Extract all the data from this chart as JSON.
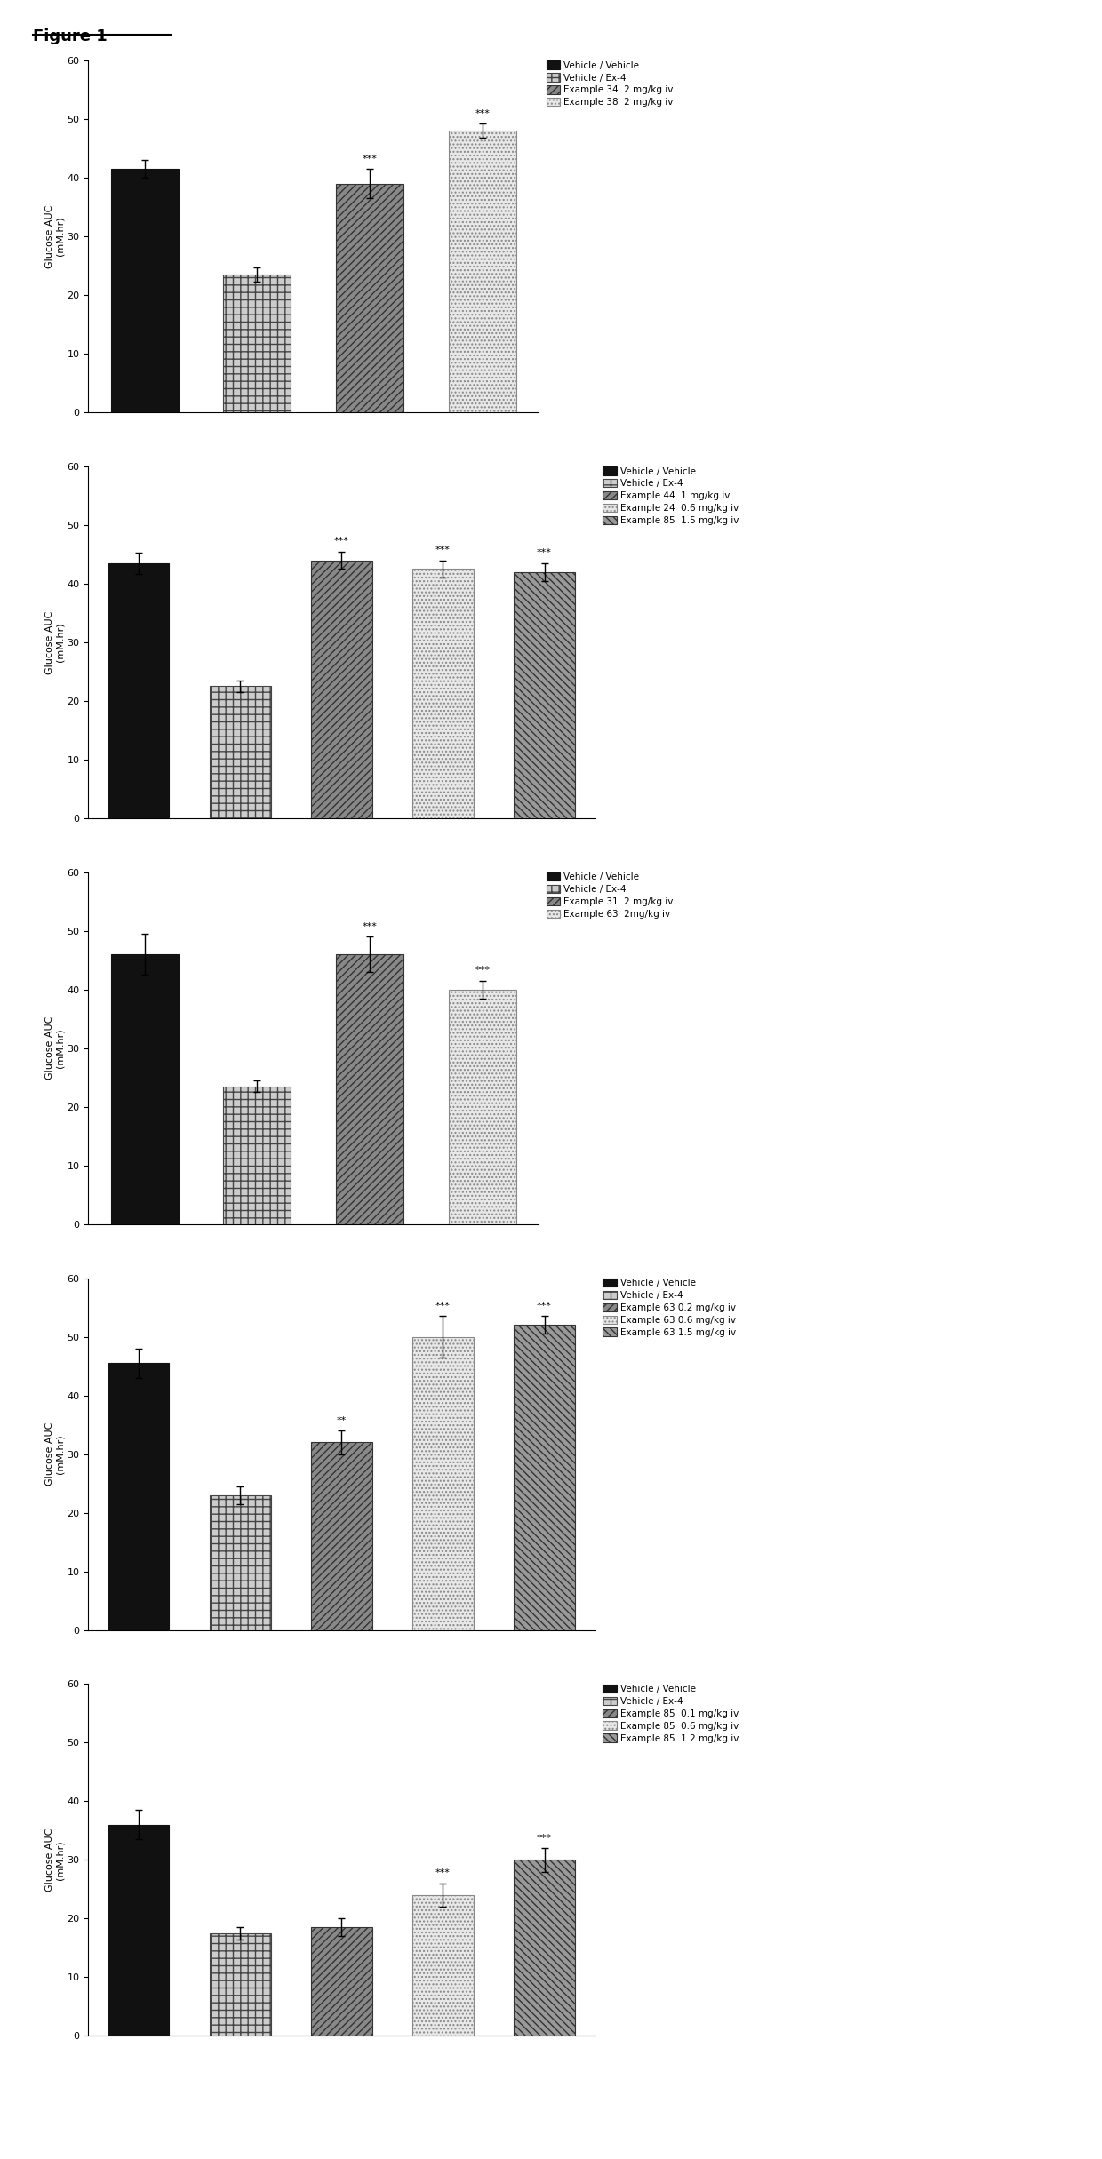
{
  "figure_title": "Figure 1",
  "ylabel": "Glucose AUC\n(mM.hr)",
  "ylim": [
    0,
    60
  ],
  "yticks": [
    0,
    10,
    20,
    30,
    40,
    50,
    60
  ],
  "panels": [
    {
      "bars": [
        {
          "value": 41.5,
          "err": 1.5,
          "hatch": "solid_black",
          "sig": ""
        },
        {
          "value": 23.5,
          "err": 1.2,
          "hatch": "checker",
          "sig": ""
        },
        {
          "value": 39.0,
          "err": 2.5,
          "hatch": "diag",
          "sig": "***"
        },
        {
          "value": 48.0,
          "err": 1.2,
          "hatch": "light_dot",
          "sig": "***"
        }
      ],
      "legend_labels": [
        "Vehicle / Vehicle",
        "Vehicle / Ex-4",
        "Example 34  2 mg/kg iv",
        "Example 38  2 mg/kg iv"
      ]
    },
    {
      "bars": [
        {
          "value": 43.5,
          "err": 1.8,
          "hatch": "solid_black",
          "sig": ""
        },
        {
          "value": 22.5,
          "err": 1.0,
          "hatch": "checker",
          "sig": ""
        },
        {
          "value": 44.0,
          "err": 1.5,
          "hatch": "diag",
          "sig": "***"
        },
        {
          "value": 42.5,
          "err": 1.5,
          "hatch": "light_dot",
          "sig": "***"
        },
        {
          "value": 42.0,
          "err": 1.5,
          "hatch": "dense_diag",
          "sig": "***"
        }
      ],
      "legend_labels": [
        "Vehicle / Vehicle",
        "Vehicle / Ex-4",
        "Example 44  1 mg/kg iv",
        "Example 24  0.6 mg/kg iv",
        "Example 85  1.5 mg/kg iv"
      ]
    },
    {
      "bars": [
        {
          "value": 46.0,
          "err": 3.5,
          "hatch": "solid_black",
          "sig": ""
        },
        {
          "value": 23.5,
          "err": 1.0,
          "hatch": "checker",
          "sig": ""
        },
        {
          "value": 46.0,
          "err": 3.0,
          "hatch": "diag",
          "sig": "***"
        },
        {
          "value": 40.0,
          "err": 1.5,
          "hatch": "light_dot",
          "sig": "***"
        }
      ],
      "legend_labels": [
        "Vehicle / Vehicle",
        "Vehicle / Ex-4",
        "Example 31  2 mg/kg iv",
        "Example 63  2mg/kg iv"
      ]
    },
    {
      "bars": [
        {
          "value": 45.5,
          "err": 2.5,
          "hatch": "solid_black",
          "sig": ""
        },
        {
          "value": 23.0,
          "err": 1.5,
          "hatch": "checker",
          "sig": ""
        },
        {
          "value": 32.0,
          "err": 2.0,
          "hatch": "diag",
          "sig": "**"
        },
        {
          "value": 50.0,
          "err": 3.5,
          "hatch": "light_dot",
          "sig": "***"
        },
        {
          "value": 52.0,
          "err": 1.5,
          "hatch": "dense_diag",
          "sig": "***"
        }
      ],
      "legend_labels": [
        "Vehicle / Vehicle",
        "Vehicle / Ex-4",
        "Example 63 0.2 mg/kg iv",
        "Example 63 0.6 mg/kg iv",
        "Example 63 1.5 mg/kg iv"
      ]
    },
    {
      "bars": [
        {
          "value": 36.0,
          "err": 2.5,
          "hatch": "solid_black",
          "sig": ""
        },
        {
          "value": 17.5,
          "err": 1.0,
          "hatch": "checker",
          "sig": ""
        },
        {
          "value": 18.5,
          "err": 1.5,
          "hatch": "diag",
          "sig": ""
        },
        {
          "value": 24.0,
          "err": 2.0,
          "hatch": "light_dot",
          "sig": "***"
        },
        {
          "value": 30.0,
          "err": 2.0,
          "hatch": "dense_diag",
          "sig": "***"
        }
      ],
      "legend_labels": [
        "Vehicle / Vehicle",
        "Vehicle / Ex-4",
        "Example 85  0.1 mg/kg iv",
        "Example 85  0.6 mg/kg iv",
        "Example 85  1.2 mg/kg iv"
      ]
    }
  ]
}
